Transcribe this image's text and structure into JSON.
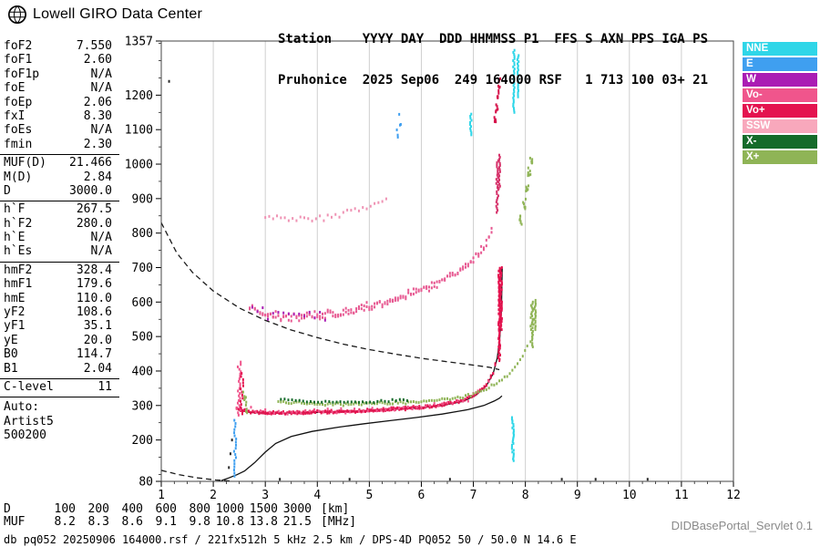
{
  "app": {
    "logo_text": "Lowell GIRO Data Center",
    "servlet_label": "DIDBasePortal_Servlet 0.1"
  },
  "header": {
    "line1": "Station    YYYY DAY  DDD HHMMSS P1  FFS S AXN PPS IGA PS",
    "line2": "Pruhonice  2025 Sep06  249 164000 RSF   1 713 100 03+ 21"
  },
  "params": {
    "groups": [
      {
        "rows": [
          {
            "label": "foF2",
            "value": "7.550"
          },
          {
            "label": "foF1",
            "value": "2.60"
          },
          {
            "label": "foF1p",
            "value": "N/A"
          },
          {
            "label": "foE",
            "value": "N/A"
          },
          {
            "label": "foEp",
            "value": "2.06"
          },
          {
            "label": "fxI",
            "value": "8.30"
          },
          {
            "label": "foEs",
            "value": "N/A"
          },
          {
            "label": "fmin",
            "value": "2.30"
          }
        ]
      },
      {
        "rows": [
          {
            "label": "MUF(D)",
            "value": "21.466"
          },
          {
            "label": "M(D)",
            "value": "2.84"
          },
          {
            "label": "D",
            "value": "3000.0"
          }
        ]
      },
      {
        "rows": [
          {
            "label": "h`F",
            "value": "267.5"
          },
          {
            "label": "h`F2",
            "value": "280.0"
          },
          {
            "label": "h`E",
            "value": "N/A"
          },
          {
            "label": "h`Es",
            "value": "N/A"
          }
        ]
      },
      {
        "rows": [
          {
            "label": "hmF2",
            "value": "328.4"
          },
          {
            "label": "hmF1",
            "value": "179.6"
          },
          {
            "label": "hmE",
            "value": "110.0"
          },
          {
            "label": "yF2",
            "value": "108.6"
          },
          {
            "label": "yF1",
            "value": "35.1"
          },
          {
            "label": "yE",
            "value": "20.0"
          },
          {
            "label": "B0",
            "value": "114.7"
          },
          {
            "label": "B1",
            "value": "2.04"
          }
        ]
      },
      {
        "rows": [
          {
            "label": "C-level",
            "value": "11"
          }
        ]
      }
    ],
    "auto_lines": [
      "Auto:",
      "Artist5",
      "500200"
    ]
  },
  "legend": {
    "items": [
      {
        "label": "NNE",
        "color": "#2fd6e8"
      },
      {
        "label": "E",
        "color": "#3f9ff0"
      },
      {
        "label": "W",
        "color": "#aa1cb4"
      },
      {
        "label": "Vo-",
        "color": "#f0558c"
      },
      {
        "label": "Vo+",
        "color": "#e4134f"
      },
      {
        "label": "SSW",
        "color": "#f8a8bc"
      },
      {
        "label": "X-",
        "color": "#156b2a"
      },
      {
        "label": "X+",
        "color": "#8fb456"
      }
    ]
  },
  "muf_table": {
    "d_label": "D",
    "d_values": [
      "100",
      "200",
      "400",
      "600",
      "800",
      "1000",
      "1500",
      "3000"
    ],
    "d_unit": "[km]",
    "muf_label": "MUF",
    "muf_values": [
      "8.2",
      "8.3",
      "8.6",
      "9.1",
      "9.8",
      "10.8",
      "13.8",
      "21.5"
    ],
    "muf_unit": "[MHz]"
  },
  "status_line": "db pq052 20250906 164000.rsf / 221fx512h 5 kHz 2.5 km / DPS-4D PQ052 50 / 50.0 N 14.6 E",
  "chart_data": {
    "type": "scatter",
    "title": "",
    "xlabel": "",
    "ylabel": "",
    "xlim": [
      1,
      12
    ],
    "ylim": [
      80,
      1357
    ],
    "x_ticks": [
      1,
      2,
      3,
      4,
      5,
      6,
      7,
      8,
      9,
      10,
      11,
      12
    ],
    "y_ticks": [
      1357,
      1200,
      1100,
      1000,
      900,
      800,
      700,
      600,
      500,
      400,
      300,
      200,
      80
    ],
    "grid": "vertical",
    "legend_position": "right",
    "series": [
      {
        "name": "transmission-curve-3000km",
        "type": "dashed",
        "color": "#1a1a1a",
        "points": [
          [
            1.0,
            830
          ],
          [
            1.3,
            742
          ],
          [
            1.6,
            686
          ],
          [
            2.0,
            632
          ],
          [
            2.5,
            583
          ],
          [
            3.0,
            547
          ],
          [
            3.5,
            519
          ],
          [
            4.0,
            497
          ],
          [
            4.5,
            478
          ],
          [
            5.0,
            462
          ],
          [
            5.5,
            449
          ],
          [
            6.0,
            437
          ],
          [
            6.5,
            427
          ],
          [
            7.0,
            417
          ],
          [
            7.3,
            411
          ],
          [
            7.5,
            404
          ]
        ]
      },
      {
        "name": "transmission-curve-low",
        "type": "dashed",
        "color": "#1a1a1a",
        "points": [
          [
            1.0,
            112
          ],
          [
            1.35,
            99
          ],
          [
            1.7,
            90
          ],
          [
            2.05,
            84
          ],
          [
            2.35,
            81
          ]
        ]
      },
      {
        "name": "true-height-profile",
        "type": "solid",
        "color": "#111111",
        "points": [
          [
            2.15,
            82
          ],
          [
            2.3,
            90
          ],
          [
            2.45,
            99
          ],
          [
            2.6,
            110
          ],
          [
            2.8,
            135
          ],
          [
            3.0,
            165
          ],
          [
            3.2,
            190
          ],
          [
            3.5,
            210
          ],
          [
            3.9,
            225
          ],
          [
            4.4,
            237
          ],
          [
            4.9,
            247
          ],
          [
            5.4,
            256
          ],
          [
            5.9,
            265
          ],
          [
            6.4,
            275
          ],
          [
            6.9,
            288
          ],
          [
            7.2,
            300
          ],
          [
            7.4,
            313
          ],
          [
            7.5,
            321
          ],
          [
            7.55,
            328
          ]
        ]
      },
      {
        "name": "o-trace-fit-line",
        "type": "solid",
        "color": "#111111",
        "points": [
          [
            2.5,
            286
          ],
          [
            2.7,
            280
          ],
          [
            3.0,
            278
          ],
          [
            3.5,
            278
          ],
          [
            4.0,
            280
          ],
          [
            4.5,
            282
          ],
          [
            5.0,
            285
          ],
          [
            5.5,
            289
          ],
          [
            6.0,
            294
          ],
          [
            6.4,
            300
          ],
          [
            6.8,
            312
          ],
          [
            7.05,
            330
          ],
          [
            7.25,
            357
          ],
          [
            7.38,
            392
          ],
          [
            7.46,
            438
          ],
          [
            7.51,
            500
          ],
          [
            7.54,
            580
          ],
          [
            7.555,
            700
          ]
        ]
      },
      {
        "name": "o-trace-hop1",
        "type": "dots",
        "color": "#e4134f",
        "step": 0.04,
        "spread": 5,
        "dup": 2,
        "points": [
          [
            2.45,
            292
          ],
          [
            2.6,
            283
          ],
          [
            3.0,
            279
          ],
          [
            3.5,
            279
          ],
          [
            4.0,
            281
          ],
          [
            4.5,
            283
          ],
          [
            5.0,
            286
          ],
          [
            5.5,
            290
          ],
          [
            6.0,
            295
          ],
          [
            6.4,
            302
          ],
          [
            6.8,
            314
          ],
          [
            7.05,
            332
          ],
          [
            7.25,
            359
          ],
          [
            7.38,
            395
          ],
          [
            7.46,
            442
          ]
        ]
      },
      {
        "name": "o-trace-hop1-pink",
        "type": "dots",
        "color": "#f0558c",
        "step": 0.09,
        "spread": 9,
        "dup": 1,
        "points": [
          [
            2.45,
            295
          ],
          [
            3.0,
            282
          ],
          [
            3.6,
            281
          ],
          [
            4.2,
            283
          ],
          [
            4.8,
            286
          ],
          [
            5.4,
            290
          ],
          [
            6.0,
            297
          ],
          [
            6.5,
            306
          ],
          [
            6.9,
            320
          ],
          [
            7.2,
            352
          ],
          [
            7.4,
            400
          ]
        ]
      },
      {
        "name": "o-trace-asymptote-streak",
        "type": "vstreak",
        "color": "#e4134f",
        "step_km": 4,
        "jx": 0.02,
        "points": [
          [
            7.5,
            430,
            700
          ],
          [
            7.53,
            520,
            700
          ]
        ]
      },
      {
        "name": "x-trace-hop1",
        "type": "dots",
        "color": "#8fb456",
        "step": 0.05,
        "spread": 5,
        "dup": 1,
        "points": [
          [
            3.25,
            311
          ],
          [
            3.6,
            307
          ],
          [
            4.0,
            305
          ],
          [
            4.5,
            304
          ],
          [
            5.0,
            305
          ],
          [
            5.5,
            307
          ],
          [
            6.0,
            310
          ],
          [
            6.5,
            317
          ],
          [
            6.9,
            328
          ],
          [
            7.2,
            343
          ],
          [
            7.5,
            369
          ],
          [
            7.75,
            401
          ],
          [
            7.95,
            442
          ],
          [
            8.08,
            492
          ]
        ]
      },
      {
        "name": "x-trace-dark",
        "type": "dots",
        "color": "#156b2a",
        "step": 0.07,
        "spread": 4,
        "dup": 1,
        "points": [
          [
            3.3,
            316
          ],
          [
            3.8,
            312
          ],
          [
            4.3,
            310
          ],
          [
            4.8,
            311
          ],
          [
            5.3,
            313
          ],
          [
            5.8,
            316
          ]
        ]
      },
      {
        "name": "x-trace-asymptote-streak",
        "type": "vstreak",
        "color": "#8fb456",
        "step_km": 5,
        "jx": 0.025,
        "points": [
          [
            8.12,
            470,
            600
          ],
          [
            8.18,
            520,
            605
          ]
        ]
      },
      {
        "name": "o-trace-hop2",
        "type": "dots",
        "color": "#e75a92",
        "step": 0.05,
        "spread": 16,
        "dup": 2,
        "points": [
          [
            2.7,
            585
          ],
          [
            2.85,
            570
          ],
          [
            3.0,
            562
          ],
          [
            3.2,
            558
          ],
          [
            3.5,
            556
          ],
          [
            3.8,
            558
          ],
          [
            4.1,
            562
          ],
          [
            4.4,
            568
          ],
          [
            4.7,
            577
          ],
          [
            5.0,
            588
          ],
          [
            5.3,
            600
          ],
          [
            5.6,
            613
          ],
          [
            5.9,
            628
          ],
          [
            6.2,
            646
          ],
          [
            6.5,
            669
          ],
          [
            6.8,
            696
          ],
          [
            7.05,
            729
          ],
          [
            7.25,
            772
          ],
          [
            7.4,
            828
          ]
        ]
      },
      {
        "name": "o-trace-hop2-magenta",
        "type": "dots",
        "color": "#aa1cb4",
        "step": 0.09,
        "spread": 20,
        "dup": 1,
        "points": [
          [
            2.75,
            588
          ],
          [
            3.05,
            566
          ],
          [
            3.35,
            558
          ],
          [
            3.65,
            557
          ],
          [
            3.95,
            561
          ],
          [
            4.25,
            566
          ]
        ]
      },
      {
        "name": "o-hop2-asymptote-streak",
        "type": "vstreak",
        "color": "#d6336b",
        "step_km": 6,
        "jx": 0.02,
        "points": [
          [
            7.46,
            860,
            1010
          ],
          [
            7.5,
            930,
            1030
          ]
        ]
      },
      {
        "name": "x-trace-hop2-cluster",
        "type": "cluster",
        "color": "#8fb456",
        "n": 7,
        "dx": 0.03,
        "dy": 16,
        "points": [
          [
            7.92,
            840
          ],
          [
            7.98,
            885
          ],
          [
            8.03,
            930
          ],
          [
            8.08,
            975
          ],
          [
            8.12,
            1015
          ]
        ]
      },
      {
        "name": "o-trace-hop3",
        "type": "dots",
        "color": "#ef93b4",
        "step": 0.07,
        "spread": 12,
        "dup": 1,
        "points": [
          [
            3.0,
            850
          ],
          [
            3.3,
            843
          ],
          [
            3.6,
            840
          ],
          [
            3.9,
            842
          ],
          [
            4.2,
            847
          ],
          [
            4.5,
            855
          ],
          [
            4.8,
            866
          ],
          [
            5.1,
            880
          ],
          [
            5.4,
            898
          ]
        ]
      },
      {
        "name": "top-red-cluster",
        "type": "cluster",
        "color": "#d6134a",
        "n": 6,
        "dx": 0.02,
        "dy": 14,
        "points": [
          [
            7.42,
            1130
          ],
          [
            7.45,
            1165
          ],
          [
            7.48,
            1200
          ],
          [
            7.5,
            1235
          ]
        ]
      },
      {
        "name": "nne-streak-top",
        "type": "vstreak",
        "color": "#2fd6e8",
        "step_km": 6,
        "jx": 0.015,
        "points": [
          [
            7.78,
            1150,
            1330
          ],
          [
            7.86,
            1195,
            1320
          ]
        ]
      },
      {
        "name": "nne-streak-mid",
        "type": "vstreak",
        "color": "#2fd6e8",
        "step_km": 6,
        "jx": 0.015,
        "points": [
          [
            6.95,
            1085,
            1145
          ]
        ]
      },
      {
        "name": "nne-streak-bottom",
        "type": "vstreak",
        "color": "#2fd6e8",
        "step_km": 5,
        "jx": 0.02,
        "points": [
          [
            7.76,
            140,
            268
          ]
        ]
      },
      {
        "name": "e-streak-left",
        "type": "vstreak",
        "color": "#3f9ff0",
        "step_km": 9,
        "jx": 0.02,
        "points": [
          [
            2.42,
            95,
            262
          ]
        ]
      },
      {
        "name": "e-specks-high",
        "type": "cluster",
        "color": "#3f9ff0",
        "n": 3,
        "dx": 0.03,
        "dy": 18,
        "points": [
          [
            5.55,
            1095
          ],
          [
            5.6,
            1130
          ]
        ]
      },
      {
        "name": "start-spread-pink",
        "type": "vstreak",
        "color": "#f0558c",
        "step_km": 7,
        "jx": 0.03,
        "points": [
          [
            2.5,
            272,
            432
          ]
        ]
      },
      {
        "name": "start-spread-red",
        "type": "vstreak",
        "color": "#e4134f",
        "step_km": 9,
        "jx": 0.03,
        "points": [
          [
            2.55,
            276,
            400
          ]
        ]
      },
      {
        "name": "start-spread-green",
        "type": "cluster",
        "color": "#8fb456",
        "n": 5,
        "dx": 0.04,
        "dy": 22,
        "points": [
          [
            2.6,
            330
          ],
          [
            2.62,
            300
          ]
        ]
      },
      {
        "name": "noise-specks",
        "type": "cluster",
        "color": "#2a2a2a",
        "n": 1,
        "dx": 0,
        "dy": 0,
        "points": [
          [
            2.3,
            120
          ],
          [
            2.36,
            200
          ],
          [
            2.33,
            160
          ],
          [
            4.62,
            86
          ],
          [
            6.55,
            86
          ],
          [
            10.35,
            86
          ],
          [
            1.15,
            1240
          ],
          [
            3.28,
            86
          ],
          [
            8.7,
            86
          ],
          [
            9.35,
            86
          ]
        ]
      }
    ]
  }
}
